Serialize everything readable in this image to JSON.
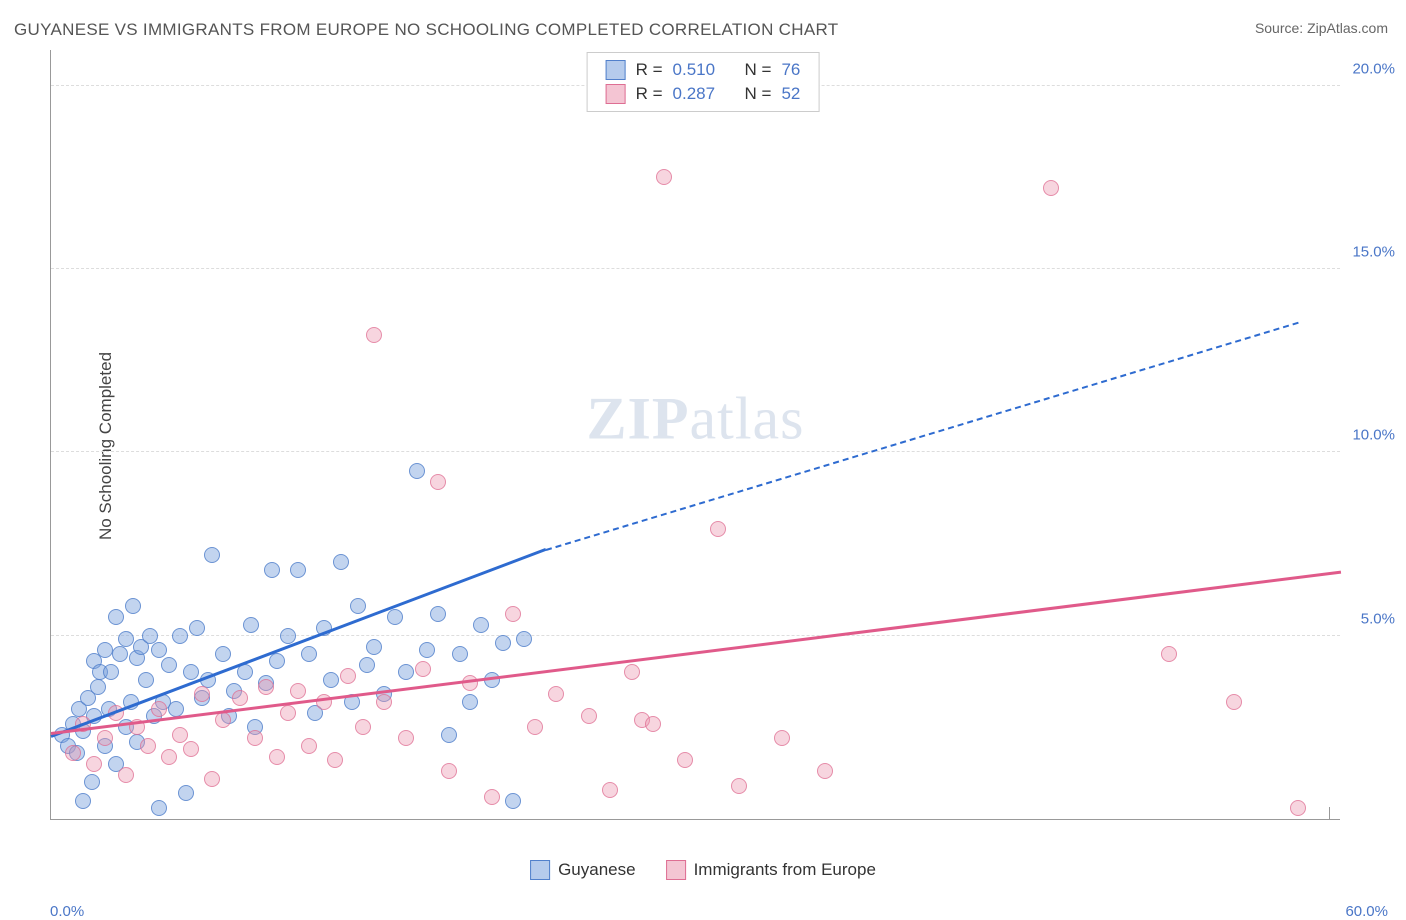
{
  "title": "GUYANESE VS IMMIGRANTS FROM EUROPE NO SCHOOLING COMPLETED CORRELATION CHART",
  "source_label": "Source: ",
  "source_value": "ZipAtlas.com",
  "ylabel": "No Schooling Completed",
  "watermark_bold": "ZIP",
  "watermark_rest": "atlas",
  "chart": {
    "type": "scatter",
    "xlim": [
      0,
      60
    ],
    "ylim": [
      0,
      21
    ],
    "xtick_labels": {
      "start": "0.0%",
      "end": "60.0%"
    },
    "ytick_labels": [
      "5.0%",
      "10.0%",
      "15.0%",
      "20.0%"
    ],
    "ytick_values": [
      5,
      10,
      15,
      20
    ],
    "background_color": "#ffffff",
    "grid_color": "#dddddd",
    "marker_size": 16,
    "series": [
      {
        "name": "Guyanese",
        "color_fill": "rgba(120,160,220,0.45)",
        "color_stroke": "rgba(70,120,200,0.7)",
        "line_color": "#2e6bd0",
        "R": "0.510",
        "N": "76",
        "trend": {
          "x1": 0,
          "y1": 2.2,
          "x2": 23,
          "y2": 7.3,
          "x2_dash": 58,
          "y2_dash": 13.5
        },
        "points": [
          [
            0.5,
            2.3
          ],
          [
            0.8,
            2.0
          ],
          [
            1.0,
            2.6
          ],
          [
            1.2,
            1.8
          ],
          [
            1.3,
            3.0
          ],
          [
            1.5,
            2.4
          ],
          [
            1.5,
            0.5
          ],
          [
            1.7,
            3.3
          ],
          [
            1.9,
            1.0
          ],
          [
            2.0,
            4.3
          ],
          [
            2.0,
            2.8
          ],
          [
            2.2,
            3.6
          ],
          [
            2.3,
            4.0
          ],
          [
            2.5,
            2.0
          ],
          [
            2.5,
            4.6
          ],
          [
            2.7,
            3.0
          ],
          [
            2.8,
            4.0
          ],
          [
            3.0,
            5.5
          ],
          [
            3.0,
            1.5
          ],
          [
            3.2,
            4.5
          ],
          [
            3.5,
            2.5
          ],
          [
            3.5,
            4.9
          ],
          [
            3.7,
            3.2
          ],
          [
            3.8,
            5.8
          ],
          [
            4.0,
            2.1
          ],
          [
            4.0,
            4.4
          ],
          [
            4.2,
            4.7
          ],
          [
            4.4,
            3.8
          ],
          [
            4.6,
            5.0
          ],
          [
            4.8,
            2.8
          ],
          [
            5.0,
            0.3
          ],
          [
            5.0,
            4.6
          ],
          [
            5.2,
            3.2
          ],
          [
            5.5,
            4.2
          ],
          [
            5.8,
            3.0
          ],
          [
            6.0,
            5.0
          ],
          [
            6.3,
            0.7
          ],
          [
            6.5,
            4.0
          ],
          [
            6.8,
            5.2
          ],
          [
            7.0,
            3.3
          ],
          [
            7.3,
            3.8
          ],
          [
            7.5,
            7.2
          ],
          [
            8.0,
            4.5
          ],
          [
            8.3,
            2.8
          ],
          [
            8.5,
            3.5
          ],
          [
            9.0,
            4.0
          ],
          [
            9.3,
            5.3
          ],
          [
            9.5,
            2.5
          ],
          [
            10.0,
            3.7
          ],
          [
            10.3,
            6.8
          ],
          [
            10.5,
            4.3
          ],
          [
            11.0,
            5.0
          ],
          [
            11.5,
            6.8
          ],
          [
            12.0,
            4.5
          ],
          [
            12.3,
            2.9
          ],
          [
            12.7,
            5.2
          ],
          [
            13.0,
            3.8
          ],
          [
            13.5,
            7.0
          ],
          [
            14.0,
            3.2
          ],
          [
            14.3,
            5.8
          ],
          [
            14.7,
            4.2
          ],
          [
            15.0,
            4.7
          ],
          [
            15.5,
            3.4
          ],
          [
            16.0,
            5.5
          ],
          [
            16.5,
            4.0
          ],
          [
            17.0,
            9.5
          ],
          [
            17.5,
            4.6
          ],
          [
            18.0,
            5.6
          ],
          [
            18.5,
            2.3
          ],
          [
            19.0,
            4.5
          ],
          [
            19.5,
            3.2
          ],
          [
            20.0,
            5.3
          ],
          [
            20.5,
            3.8
          ],
          [
            21.0,
            4.8
          ],
          [
            21.5,
            0.5
          ],
          [
            22.0,
            4.9
          ]
        ]
      },
      {
        "name": "Immigrants from Europe",
        "color_fill": "rgba(235,150,175,0.40)",
        "color_stroke": "rgba(220,100,140,0.65)",
        "line_color": "#e05a8a",
        "R": "0.287",
        "N": "52",
        "trend": {
          "x1": 0,
          "y1": 2.3,
          "x2": 60,
          "y2": 6.7
        },
        "points": [
          [
            1.0,
            1.8
          ],
          [
            1.5,
            2.6
          ],
          [
            2.0,
            1.5
          ],
          [
            2.5,
            2.2
          ],
          [
            3.0,
            2.9
          ],
          [
            3.5,
            1.2
          ],
          [
            4.0,
            2.5
          ],
          [
            4.5,
            2.0
          ],
          [
            5.0,
            3.0
          ],
          [
            5.5,
            1.7
          ],
          [
            6.0,
            2.3
          ],
          [
            6.5,
            1.9
          ],
          [
            7.0,
            3.4
          ],
          [
            7.5,
            1.1
          ],
          [
            8.0,
            2.7
          ],
          [
            8.8,
            3.3
          ],
          [
            9.5,
            2.2
          ],
          [
            10.0,
            3.6
          ],
          [
            10.5,
            1.7
          ],
          [
            11.0,
            2.9
          ],
          [
            11.5,
            3.5
          ],
          [
            12.0,
            2.0
          ],
          [
            12.7,
            3.2
          ],
          [
            13.2,
            1.6
          ],
          [
            13.8,
            3.9
          ],
          [
            14.5,
            2.5
          ],
          [
            15.0,
            13.2
          ],
          [
            15.5,
            3.2
          ],
          [
            16.5,
            2.2
          ],
          [
            17.3,
            4.1
          ],
          [
            18.0,
            9.2
          ],
          [
            18.5,
            1.3
          ],
          [
            19.5,
            3.7
          ],
          [
            20.5,
            0.6
          ],
          [
            21.5,
            5.6
          ],
          [
            22.5,
            2.5
          ],
          [
            23.5,
            3.4
          ],
          [
            25.0,
            2.8
          ],
          [
            26.0,
            0.8
          ],
          [
            27.0,
            4.0
          ],
          [
            27.5,
            2.7
          ],
          [
            28.0,
            2.6
          ],
          [
            28.5,
            17.5
          ],
          [
            29.5,
            1.6
          ],
          [
            31.0,
            7.9
          ],
          [
            32.0,
            0.9
          ],
          [
            34.0,
            2.2
          ],
          [
            36.0,
            1.3
          ],
          [
            46.5,
            17.2
          ],
          [
            52.0,
            4.5
          ],
          [
            55.0,
            3.2
          ],
          [
            58.0,
            0.3
          ]
        ]
      }
    ]
  },
  "legend_stats_labels": {
    "R": "R =",
    "N": "N ="
  }
}
